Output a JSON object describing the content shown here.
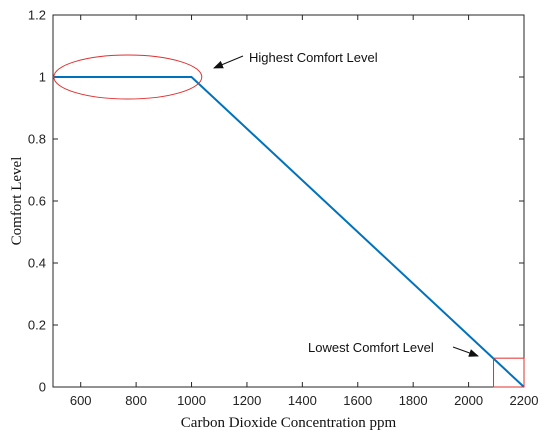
{
  "chart_data": {
    "type": "line",
    "title": "",
    "xlabel": "Carbon Dioxide Concentration ppm",
    "ylabel": "Comfort Level",
    "xlim": [
      500,
      2200
    ],
    "ylim": [
      0,
      1.2
    ],
    "xticks": [
      600,
      800,
      1000,
      1200,
      1400,
      1600,
      1800,
      2000,
      2200
    ],
    "yticks": [
      0,
      0.2,
      0.4,
      0.6,
      0.8,
      1,
      1.2
    ],
    "grid": false,
    "series": [
      {
        "x": [
          500,
          1000,
          2200
        ],
        "y": [
          1,
          1,
          0
        ],
        "color": "#0072bd"
      }
    ],
    "annotations": [
      {
        "text": "Highest Comfort Level",
        "shape": "ellipse",
        "color": "#e03030"
      },
      {
        "text": "Lowest Comfort Level",
        "shape": "rectangle",
        "color": "#e03030"
      }
    ]
  }
}
